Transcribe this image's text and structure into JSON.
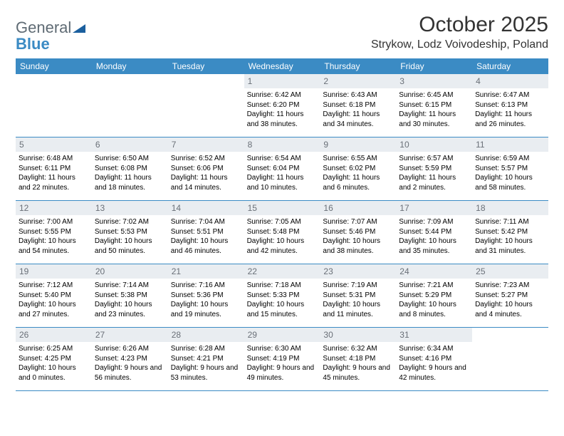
{
  "logo": {
    "text1": "General",
    "text2": "Blue"
  },
  "title": "October 2025",
  "location": "Strykow, Lodz Voivodeship, Poland",
  "colors": {
    "header_bg": "#3b8bc4",
    "daynum_bg": "#e9edf1",
    "border": "#3b8bc4",
    "logo_gray": "#5f6b74",
    "logo_blue": "#3b8bc4"
  },
  "weekdays": [
    "Sunday",
    "Monday",
    "Tuesday",
    "Wednesday",
    "Thursday",
    "Friday",
    "Saturday"
  ],
  "weeks": [
    [
      {
        "n": "",
        "sunrise": "",
        "sunset": "",
        "daylight": ""
      },
      {
        "n": "",
        "sunrise": "",
        "sunset": "",
        "daylight": ""
      },
      {
        "n": "",
        "sunrise": "",
        "sunset": "",
        "daylight": ""
      },
      {
        "n": "1",
        "sunrise": "Sunrise: 6:42 AM",
        "sunset": "Sunset: 6:20 PM",
        "daylight": "Daylight: 11 hours and 38 minutes."
      },
      {
        "n": "2",
        "sunrise": "Sunrise: 6:43 AM",
        "sunset": "Sunset: 6:18 PM",
        "daylight": "Daylight: 11 hours and 34 minutes."
      },
      {
        "n": "3",
        "sunrise": "Sunrise: 6:45 AM",
        "sunset": "Sunset: 6:15 PM",
        "daylight": "Daylight: 11 hours and 30 minutes."
      },
      {
        "n": "4",
        "sunrise": "Sunrise: 6:47 AM",
        "sunset": "Sunset: 6:13 PM",
        "daylight": "Daylight: 11 hours and 26 minutes."
      }
    ],
    [
      {
        "n": "5",
        "sunrise": "Sunrise: 6:48 AM",
        "sunset": "Sunset: 6:11 PM",
        "daylight": "Daylight: 11 hours and 22 minutes."
      },
      {
        "n": "6",
        "sunrise": "Sunrise: 6:50 AM",
        "sunset": "Sunset: 6:08 PM",
        "daylight": "Daylight: 11 hours and 18 minutes."
      },
      {
        "n": "7",
        "sunrise": "Sunrise: 6:52 AM",
        "sunset": "Sunset: 6:06 PM",
        "daylight": "Daylight: 11 hours and 14 minutes."
      },
      {
        "n": "8",
        "sunrise": "Sunrise: 6:54 AM",
        "sunset": "Sunset: 6:04 PM",
        "daylight": "Daylight: 11 hours and 10 minutes."
      },
      {
        "n": "9",
        "sunrise": "Sunrise: 6:55 AM",
        "sunset": "Sunset: 6:02 PM",
        "daylight": "Daylight: 11 hours and 6 minutes."
      },
      {
        "n": "10",
        "sunrise": "Sunrise: 6:57 AM",
        "sunset": "Sunset: 5:59 PM",
        "daylight": "Daylight: 11 hours and 2 minutes."
      },
      {
        "n": "11",
        "sunrise": "Sunrise: 6:59 AM",
        "sunset": "Sunset: 5:57 PM",
        "daylight": "Daylight: 10 hours and 58 minutes."
      }
    ],
    [
      {
        "n": "12",
        "sunrise": "Sunrise: 7:00 AM",
        "sunset": "Sunset: 5:55 PM",
        "daylight": "Daylight: 10 hours and 54 minutes."
      },
      {
        "n": "13",
        "sunrise": "Sunrise: 7:02 AM",
        "sunset": "Sunset: 5:53 PM",
        "daylight": "Daylight: 10 hours and 50 minutes."
      },
      {
        "n": "14",
        "sunrise": "Sunrise: 7:04 AM",
        "sunset": "Sunset: 5:51 PM",
        "daylight": "Daylight: 10 hours and 46 minutes."
      },
      {
        "n": "15",
        "sunrise": "Sunrise: 7:05 AM",
        "sunset": "Sunset: 5:48 PM",
        "daylight": "Daylight: 10 hours and 42 minutes."
      },
      {
        "n": "16",
        "sunrise": "Sunrise: 7:07 AM",
        "sunset": "Sunset: 5:46 PM",
        "daylight": "Daylight: 10 hours and 38 minutes."
      },
      {
        "n": "17",
        "sunrise": "Sunrise: 7:09 AM",
        "sunset": "Sunset: 5:44 PM",
        "daylight": "Daylight: 10 hours and 35 minutes."
      },
      {
        "n": "18",
        "sunrise": "Sunrise: 7:11 AM",
        "sunset": "Sunset: 5:42 PM",
        "daylight": "Daylight: 10 hours and 31 minutes."
      }
    ],
    [
      {
        "n": "19",
        "sunrise": "Sunrise: 7:12 AM",
        "sunset": "Sunset: 5:40 PM",
        "daylight": "Daylight: 10 hours and 27 minutes."
      },
      {
        "n": "20",
        "sunrise": "Sunrise: 7:14 AM",
        "sunset": "Sunset: 5:38 PM",
        "daylight": "Daylight: 10 hours and 23 minutes."
      },
      {
        "n": "21",
        "sunrise": "Sunrise: 7:16 AM",
        "sunset": "Sunset: 5:36 PM",
        "daylight": "Daylight: 10 hours and 19 minutes."
      },
      {
        "n": "22",
        "sunrise": "Sunrise: 7:18 AM",
        "sunset": "Sunset: 5:33 PM",
        "daylight": "Daylight: 10 hours and 15 minutes."
      },
      {
        "n": "23",
        "sunrise": "Sunrise: 7:19 AM",
        "sunset": "Sunset: 5:31 PM",
        "daylight": "Daylight: 10 hours and 11 minutes."
      },
      {
        "n": "24",
        "sunrise": "Sunrise: 7:21 AM",
        "sunset": "Sunset: 5:29 PM",
        "daylight": "Daylight: 10 hours and 8 minutes."
      },
      {
        "n": "25",
        "sunrise": "Sunrise: 7:23 AM",
        "sunset": "Sunset: 5:27 PM",
        "daylight": "Daylight: 10 hours and 4 minutes."
      }
    ],
    [
      {
        "n": "26",
        "sunrise": "Sunrise: 6:25 AM",
        "sunset": "Sunset: 4:25 PM",
        "daylight": "Daylight: 10 hours and 0 minutes."
      },
      {
        "n": "27",
        "sunrise": "Sunrise: 6:26 AM",
        "sunset": "Sunset: 4:23 PM",
        "daylight": "Daylight: 9 hours and 56 minutes."
      },
      {
        "n": "28",
        "sunrise": "Sunrise: 6:28 AM",
        "sunset": "Sunset: 4:21 PM",
        "daylight": "Daylight: 9 hours and 53 minutes."
      },
      {
        "n": "29",
        "sunrise": "Sunrise: 6:30 AM",
        "sunset": "Sunset: 4:19 PM",
        "daylight": "Daylight: 9 hours and 49 minutes."
      },
      {
        "n": "30",
        "sunrise": "Sunrise: 6:32 AM",
        "sunset": "Sunset: 4:18 PM",
        "daylight": "Daylight: 9 hours and 45 minutes."
      },
      {
        "n": "31",
        "sunrise": "Sunrise: 6:34 AM",
        "sunset": "Sunset: 4:16 PM",
        "daylight": "Daylight: 9 hours and 42 minutes."
      },
      {
        "n": "",
        "sunrise": "",
        "sunset": "",
        "daylight": ""
      }
    ]
  ]
}
